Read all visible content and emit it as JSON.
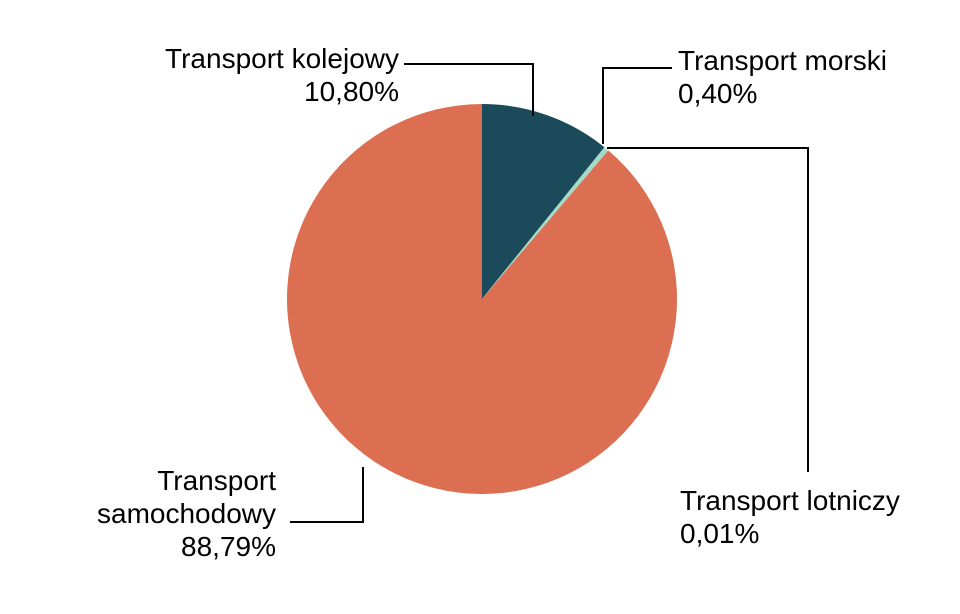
{
  "chart_data": {
    "type": "pie",
    "unit": "%",
    "decimal_separator": ",",
    "start_angle_deg": 0,
    "direction": "clockwise",
    "legend": "none",
    "label_style": "callouts-with-elbow-leader-lines",
    "background_color": "#ffffff",
    "leader_line_color": "#000000",
    "text_color": "#000000",
    "slices": [
      {
        "label": "Transport kolejowy",
        "value": 10.8,
        "display_value": "10,80%",
        "color": "#1B4A5A"
      },
      {
        "label": "Transport morski",
        "value": 0.4,
        "display_value": "0,40%",
        "color": "#A3DBC9"
      },
      {
        "label": "Transport lotniczy",
        "value": 0.01,
        "display_value": "0,01%",
        "color": null
      },
      {
        "label": "Transport samochodowy",
        "value": 88.79,
        "display_value": "88,79%",
        "color": "#DC6E52"
      }
    ]
  },
  "callouts": {
    "kolejowy": {
      "line1": "Transport kolejowy",
      "line2": "10,80%"
    },
    "morski": {
      "line1": "Transport morski",
      "line2": "0,40%"
    },
    "lotniczy": {
      "line1": "Transport lotniczy",
      "line2": "0,01%"
    },
    "samochodowy": {
      "line1": "Transport",
      "line2": "samochodowy",
      "line3": "88,79%"
    }
  }
}
